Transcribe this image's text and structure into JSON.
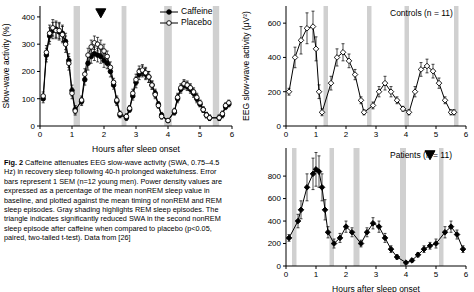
{
  "caption": {
    "label": "Fig. 2",
    "text": "Caffeine attenuates EEG slow-wave activity (SWA, 0.75–4.5 Hz) in recovery sleep following 40-h prolonged wakefulness. Error bars represent 1 SEM (n=12 young men). Power density values are expressed as a percentage of the mean nonREM sleep value in baseline, and plotted against the mean timing of nonREM and REM sleep episodes. Gray shading highlights REM sleep episodes. The triangle indicates significantly reduced SWA in the second nonREM sleep episode after caffeine when compared to placebo (p<0.05, paired, two-tailed t-test). Data from [26]"
  },
  "chart_data": [
    {
      "type": "line",
      "x_label": "Hours after sleep onset",
      "y_label": "Slow-wave activity (%)",
      "xlim": [
        0,
        6
      ],
      "xticks": [
        0,
        1,
        2,
        3,
        4,
        5,
        6
      ],
      "ylim": [
        0,
        440
      ],
      "yticks": [
        0,
        100,
        200,
        300,
        400
      ],
      "legend": "upper right",
      "rem_episodes": [
        [
          1.05,
          1.25
        ],
        [
          2.55,
          2.7
        ],
        [
          3.88,
          4.12
        ],
        [
          5.4,
          5.6
        ]
      ],
      "annotations": [
        {
          "x": 1.9,
          "y": 415,
          "marker": "triangle"
        }
      ],
      "x": [
        0.1,
        0.2,
        0.3,
        0.4,
        0.5,
        0.6,
        0.7,
        0.8,
        0.9,
        1.0,
        1.1,
        1.3,
        1.4,
        1.5,
        1.6,
        1.7,
        1.8,
        1.9,
        2.0,
        2.1,
        2.2,
        2.3,
        2.4,
        2.5,
        2.7,
        2.8,
        2.9,
        3.0,
        3.1,
        3.2,
        3.3,
        3.4,
        3.5,
        3.6,
        3.7,
        3.8,
        4.0,
        4.2,
        4.3,
        4.4,
        4.5,
        4.6,
        4.7,
        4.8,
        4.9,
        5.0,
        5.1,
        5.2,
        5.3,
        5.6,
        5.7,
        5.8,
        5.9
      ],
      "series": [
        {
          "name": "Caffeine",
          "color": "#000000",
          "marker": "filled_circle",
          "values": [
            100,
            260,
            330,
            350,
            355,
            345,
            340,
            310,
            240,
            130,
            60,
            90,
            170,
            230,
            255,
            265,
            260,
            255,
            240,
            230,
            200,
            150,
            90,
            40,
            30,
            60,
            110,
            160,
            190,
            200,
            190,
            180,
            150,
            120,
            80,
            40,
            20,
            50,
            100,
            135,
            150,
            145,
            135,
            120,
            100,
            80,
            60,
            40,
            30,
            30,
            40,
            70,
            80
          ],
          "errors": [
            15,
            25,
            30,
            30,
            30,
            30,
            30,
            30,
            25,
            20,
            15,
            15,
            20,
            25,
            25,
            25,
            25,
            25,
            25,
            20,
            20,
            15,
            15,
            10,
            10,
            10,
            15,
            20,
            20,
            20,
            20,
            20,
            15,
            15,
            10,
            10,
            5,
            10,
            15,
            15,
            15,
            15,
            15,
            15,
            15,
            10,
            10,
            10,
            10,
            10,
            10,
            10,
            10
          ]
        },
        {
          "name": "Placebo",
          "color": "#000000",
          "marker": "open_circle",
          "values": [
            110,
            270,
            340,
            360,
            350,
            350,
            335,
            300,
            230,
            120,
            55,
            95,
            190,
            260,
            290,
            305,
            300,
            290,
            275,
            255,
            215,
            160,
            95,
            45,
            35,
            65,
            120,
            170,
            200,
            205,
            195,
            180,
            150,
            115,
            75,
            35,
            20,
            55,
            105,
            140,
            155,
            150,
            140,
            125,
            105,
            85,
            60,
            40,
            30,
            30,
            45,
            75,
            85
          ],
          "errors": [
            15,
            25,
            30,
            30,
            30,
            30,
            30,
            30,
            25,
            20,
            15,
            15,
            20,
            25,
            25,
            25,
            25,
            25,
            25,
            20,
            20,
            15,
            15,
            10,
            10,
            10,
            15,
            20,
            20,
            20,
            20,
            20,
            15,
            15,
            10,
            10,
            5,
            10,
            15,
            15,
            15,
            15,
            15,
            15,
            15,
            10,
            10,
            10,
            10,
            10,
            10,
            10,
            10
          ]
        }
      ]
    },
    {
      "type": "line",
      "title": "Controls (n = 11)",
      "y_label": "EEG slow-wave activity (μV²)",
      "xlim": [
        0,
        6
      ],
      "xticks": [
        0,
        1,
        2,
        3,
        4,
        5,
        6
      ],
      "ylim": [
        0,
        700
      ],
      "yticks": [
        0,
        200,
        400,
        600
      ],
      "rem_episodes": [
        [
          1.25,
          1.4
        ],
        [
          2.7,
          2.85
        ],
        [
          3.95,
          4.1
        ],
        [
          5.6,
          5.75
        ]
      ],
      "x": [
        0.1,
        0.3,
        0.5,
        0.7,
        0.9,
        1.0,
        1.1,
        1.2,
        1.5,
        1.7,
        1.9,
        2.1,
        2.3,
        2.5,
        2.6,
        2.9,
        3.1,
        3.3,
        3.5,
        3.7,
        3.9,
        4.1,
        4.3,
        4.5,
        4.7,
        4.9,
        5.1,
        5.3,
        5.5,
        5.6
      ],
      "series": [
        {
          "name": "Controls",
          "color": "#000000",
          "marker": "open_diamond",
          "values": [
            200,
            400,
            500,
            570,
            580,
            450,
            200,
            80,
            250,
            400,
            430,
            380,
            300,
            150,
            80,
            120,
            200,
            250,
            200,
            150,
            100,
            80,
            200,
            330,
            350,
            320,
            250,
            150,
            80,
            80
          ],
          "errors": [
            20,
            60,
            80,
            90,
            90,
            70,
            40,
            20,
            40,
            50,
            50,
            40,
            30,
            20,
            15,
            20,
            30,
            40,
            30,
            20,
            15,
            15,
            30,
            40,
            40,
            40,
            30,
            20,
            15,
            15
          ]
        }
      ]
    },
    {
      "type": "line",
      "title": "Patients (n = 11)",
      "x_label": "Hours after sleep onset",
      "xlim": [
        0,
        6
      ],
      "xticks": [
        0,
        1,
        2,
        3,
        4,
        5,
        6
      ],
      "ylim": [
        0,
        1050
      ],
      "yticks": [
        0,
        200,
        400,
        600,
        800
      ],
      "rem_episodes": [
        [
          0.2,
          0.35
        ],
        [
          1.45,
          1.6
        ],
        [
          2.25,
          2.45
        ],
        [
          3.8,
          4.0
        ],
        [
          5.1,
          5.25
        ]
      ],
      "annotations": [
        {
          "x": 4.8,
          "y": 990,
          "marker": "triangle"
        }
      ],
      "x": [
        0.1,
        0.4,
        0.5,
        0.7,
        0.9,
        1.0,
        1.1,
        1.2,
        1.3,
        1.4,
        1.6,
        1.8,
        2.0,
        2.2,
        2.5,
        2.7,
        2.9,
        3.1,
        3.3,
        3.5,
        3.7,
        4.0,
        4.2,
        4.4,
        4.6,
        4.8,
        5.0,
        5.3,
        5.5,
        5.7,
        5.9
      ],
      "series": [
        {
          "name": "Patients",
          "color": "#000000",
          "marker": "filled_diamond",
          "values": [
            250,
            400,
            500,
            700,
            820,
            860,
            840,
            700,
            500,
            300,
            200,
            250,
            350,
            300,
            200,
            300,
            380,
            350,
            250,
            150,
            80,
            30,
            50,
            100,
            150,
            180,
            200,
            300,
            350,
            280,
            150
          ],
          "errors": [
            30,
            60,
            80,
            120,
            140,
            150,
            140,
            120,
            90,
            50,
            40,
            40,
            50,
            40,
            30,
            40,
            50,
            50,
            40,
            30,
            20,
            10,
            15,
            20,
            30,
            30,
            40,
            50,
            50,
            40,
            30
          ]
        }
      ]
    }
  ]
}
